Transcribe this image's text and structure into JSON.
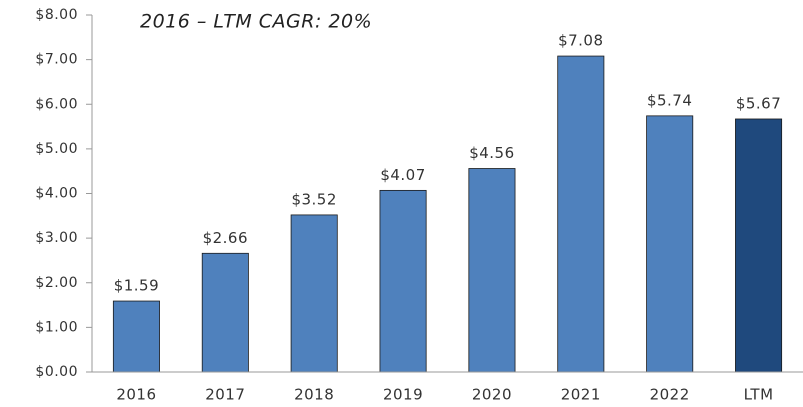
{
  "chart_data": {
    "type": "bar",
    "annotation": "2016 – LTM CAGR:  20%",
    "categories": [
      "2016",
      "2017",
      "2018",
      "2019",
      "2020",
      "2021",
      "2022",
      "LTM"
    ],
    "values": [
      1.59,
      2.66,
      3.52,
      4.07,
      4.56,
      7.08,
      5.74,
      5.67
    ],
    "value_labels": [
      "$1.59",
      "$2.66",
      "$3.52",
      "$4.07",
      "$4.56",
      "$7.08",
      "$5.74",
      "$5.67"
    ],
    "colors": [
      "#4f81bd",
      "#4f81bd",
      "#4f81bd",
      "#4f81bd",
      "#4f81bd",
      "#4f81bd",
      "#4f81bd",
      "#1f497d"
    ],
    "ylim": [
      0,
      8
    ],
    "yticks": [
      {
        "value": 0,
        "label": "$0.00"
      },
      {
        "value": 1,
        "label": "$1.00"
      },
      {
        "value": 2,
        "label": "$2.00"
      },
      {
        "value": 3,
        "label": "$3.00"
      },
      {
        "value": 4,
        "label": "$4.00"
      },
      {
        "value": 5,
        "label": "$5.00"
      },
      {
        "value": 6,
        "label": "$6.00"
      },
      {
        "value": 7,
        "label": "$7.00"
      },
      {
        "value": 8,
        "label": "$8.00"
      }
    ],
    "grid": false
  }
}
